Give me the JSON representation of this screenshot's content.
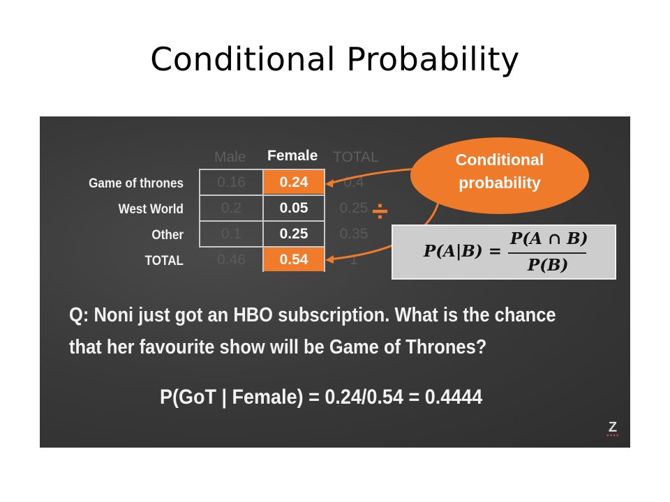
{
  "title": "Conditional Probability",
  "table": {
    "headers": {
      "male": "Male",
      "female": "Female",
      "total": "TOTAL"
    },
    "rows": [
      {
        "label": "Game of thrones",
        "male": "0.16",
        "female": "0.24",
        "total": "0.4"
      },
      {
        "label": "West World",
        "male": "0.2",
        "female": "0.05",
        "total": "0.25"
      },
      {
        "label": "Other",
        "male": "0.1",
        "female": "0.25",
        "total": "0.35"
      },
      {
        "label": "TOTAL",
        "male": "0.46",
        "female": "0.54",
        "total": "1"
      }
    ]
  },
  "callout": {
    "line1": "Conditional",
    "line2": "probability"
  },
  "formula": {
    "lhs": "P(A|B) =",
    "numerator": "P(A ∩ B)",
    "denominator": "P(B)"
  },
  "divide_symbol": "÷",
  "question": {
    "line1": "Q: Noni just got an HBO subscription. What is the chance",
    "line2": "that her favourite show will be Game of Thrones?"
  },
  "answer": "P(GoT | Female) = 0.24/0.54 = 0.4444",
  "logo_letter": "Z",
  "colors": {
    "accent": "#f07b2a",
    "board": "#3a3a3a",
    "formula_bg": "#cdcdcd"
  }
}
